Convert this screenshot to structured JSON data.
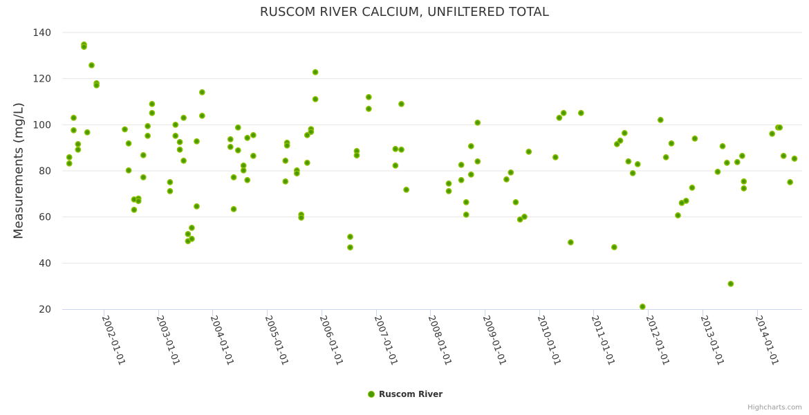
{
  "chart_data": {
    "type": "scatter",
    "title": "RUSCOM RIVER CALCIUM, UNFILTERED TOTAL",
    "xlabel": "",
    "ylabel": "Measurements (mg/L)",
    "x_unit": "decimal year",
    "xlim": [
      2001.24,
      2014.83
    ],
    "ylim": [
      20,
      140
    ],
    "y_ticks": [
      20,
      40,
      60,
      80,
      100,
      120,
      140
    ],
    "x_ticks": [
      2002,
      2003,
      2004,
      2005,
      2006,
      2007,
      2008,
      2009,
      2010,
      2011,
      2012,
      2013,
      2014
    ],
    "x_tick_labels": [
      "2002-01-01",
      "2003-01-01",
      "2004-01-01",
      "2005-01-01",
      "2006-01-01",
      "2007-01-01",
      "2008-01-01",
      "2009-01-01",
      "2010-01-01",
      "2011-01-01",
      "2012-01-01",
      "2013-01-01",
      "2014-01-01"
    ],
    "grid": true,
    "legend_position": "bottom-center",
    "series": [
      {
        "name": "Ruscom River",
        "color": "#4a9a00",
        "border_color": "#8cc000",
        "points": [
          [
            2001.37,
            85.9
          ],
          [
            2001.37,
            83.2
          ],
          [
            2001.45,
            103.0
          ],
          [
            2001.45,
            97.6
          ],
          [
            2001.53,
            91.6
          ],
          [
            2001.53,
            89.2
          ],
          [
            2001.64,
            134.8
          ],
          [
            2001.64,
            133.8
          ],
          [
            2001.7,
            96.7
          ],
          [
            2001.78,
            125.8
          ],
          [
            2001.87,
            118.0
          ],
          [
            2001.87,
            117.1
          ],
          [
            2002.39,
            98.0
          ],
          [
            2002.46,
            91.9
          ],
          [
            2002.46,
            80.2
          ],
          [
            2002.56,
            67.6
          ],
          [
            2002.56,
            63.1
          ],
          [
            2002.64,
            68.0
          ],
          [
            2002.64,
            66.9
          ],
          [
            2002.73,
            86.8
          ],
          [
            2002.73,
            77.2
          ],
          [
            2002.81,
            99.4
          ],
          [
            2002.81,
            95.2
          ],
          [
            2002.89,
            109.0
          ],
          [
            2002.89,
            105.1
          ],
          [
            2003.22,
            75.1
          ],
          [
            2003.22,
            71.2
          ],
          [
            2003.32,
            100.0
          ],
          [
            2003.32,
            95.2
          ],
          [
            2003.4,
            92.5
          ],
          [
            2003.4,
            89.2
          ],
          [
            2003.47,
            103.0
          ],
          [
            2003.47,
            84.4
          ],
          [
            2003.55,
            52.6
          ],
          [
            2003.55,
            49.5
          ],
          [
            2003.62,
            55.3
          ],
          [
            2003.62,
            50.5
          ],
          [
            2003.71,
            92.8
          ],
          [
            2003.71,
            64.6
          ],
          [
            2003.81,
            114.1
          ],
          [
            2003.81,
            103.9
          ],
          [
            2004.33,
            93.7
          ],
          [
            2004.33,
            90.4
          ],
          [
            2004.39,
            77.2
          ],
          [
            2004.39,
            63.4
          ],
          [
            2004.47,
            98.8
          ],
          [
            2004.47,
            88.9
          ],
          [
            2004.57,
            82.3
          ],
          [
            2004.57,
            80.2
          ],
          [
            2004.64,
            94.3
          ],
          [
            2004.64,
            76.0
          ],
          [
            2004.75,
            95.5
          ],
          [
            2004.75,
            86.5
          ],
          [
            2005.34,
            84.4
          ],
          [
            2005.34,
            75.4
          ],
          [
            2005.37,
            92.2
          ],
          [
            2005.37,
            91.0
          ],
          [
            2005.55,
            80.2
          ],
          [
            2005.55,
            78.9
          ],
          [
            2005.63,
            61.0
          ],
          [
            2005.63,
            59.7
          ],
          [
            2005.74,
            95.5
          ],
          [
            2005.74,
            83.5
          ],
          [
            2005.81,
            98.1
          ],
          [
            2005.81,
            96.9
          ],
          [
            2005.89,
            122.8
          ],
          [
            2005.89,
            111.1
          ],
          [
            2006.53,
            51.4
          ],
          [
            2006.53,
            46.8
          ],
          [
            2006.65,
            88.6
          ],
          [
            2006.65,
            86.7
          ],
          [
            2006.87,
            112.0
          ],
          [
            2006.87,
            106.9
          ],
          [
            2007.36,
            89.5
          ],
          [
            2007.36,
            82.3
          ],
          [
            2007.47,
            89.2
          ],
          [
            2007.47,
            109.0
          ],
          [
            2007.56,
            71.8
          ],
          [
            2008.34,
            74.5
          ],
          [
            2008.34,
            71.2
          ],
          [
            2008.57,
            82.6
          ],
          [
            2008.57,
            76.0
          ],
          [
            2008.66,
            66.4
          ],
          [
            2008.66,
            61.0
          ],
          [
            2008.75,
            90.7
          ],
          [
            2008.75,
            78.4
          ],
          [
            2008.87,
            100.9
          ],
          [
            2008.87,
            84.1
          ],
          [
            2009.4,
            76.3
          ],
          [
            2009.48,
            79.3
          ],
          [
            2009.57,
            66.4
          ],
          [
            2009.65,
            58.9
          ],
          [
            2009.73,
            60.1
          ],
          [
            2009.81,
            88.3
          ],
          [
            2010.3,
            85.9
          ],
          [
            2010.37,
            103.0
          ],
          [
            2010.45,
            105.1
          ],
          [
            2010.58,
            49.0
          ],
          [
            2010.77,
            105.1
          ],
          [
            2011.38,
            46.9
          ],
          [
            2011.43,
            91.6
          ],
          [
            2011.49,
            93.1
          ],
          [
            2011.57,
            96.4
          ],
          [
            2011.64,
            84.1
          ],
          [
            2011.72,
            79.0
          ],
          [
            2011.81,
            82.9
          ],
          [
            2011.9,
            21.1
          ],
          [
            2012.23,
            102.1
          ],
          [
            2012.33,
            85.9
          ],
          [
            2012.43,
            91.9
          ],
          [
            2012.55,
            60.7
          ],
          [
            2012.62,
            66.1
          ],
          [
            2012.7,
            67.0
          ],
          [
            2012.81,
            72.7
          ],
          [
            2012.86,
            94.0
          ],
          [
            2013.28,
            79.6
          ],
          [
            2013.37,
            90.7
          ],
          [
            2013.45,
            83.5
          ],
          [
            2013.52,
            31.0
          ],
          [
            2013.64,
            83.8
          ],
          [
            2013.73,
            86.5
          ],
          [
            2013.76,
            75.4
          ],
          [
            2013.76,
            72.4
          ],
          [
            2014.28,
            96.1
          ],
          [
            2014.39,
            98.8
          ],
          [
            2014.42,
            98.8
          ],
          [
            2014.49,
            86.5
          ],
          [
            2014.61,
            75.1
          ],
          [
            2014.69,
            85.3
          ]
        ]
      }
    ]
  },
  "credits": "Highcharts.com"
}
